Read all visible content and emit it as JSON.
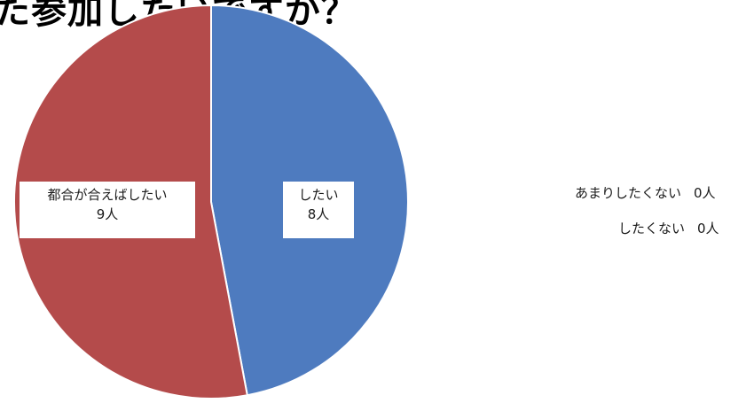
{
  "chart_data": {
    "type": "pie",
    "title": "た参加したいですか？",
    "slices": [
      {
        "category": "したい",
        "value": 8,
        "value_label": "8人",
        "color": "#4e7bbf"
      },
      {
        "category": "あまりしたくない",
        "value": 0,
        "value_label": "0人",
        "color": "#9bbb59"
      },
      {
        "category": "したくない",
        "value": 0,
        "value_label": "0人",
        "color": "#8064a2"
      },
      {
        "category": "都合が合えばしたい",
        "value": 9,
        "value_label": "9人",
        "color": "#b44b4b"
      }
    ],
    "start_angle_deg": 0,
    "direction": "clockwise",
    "slice_border_color": "#ffffff"
  }
}
